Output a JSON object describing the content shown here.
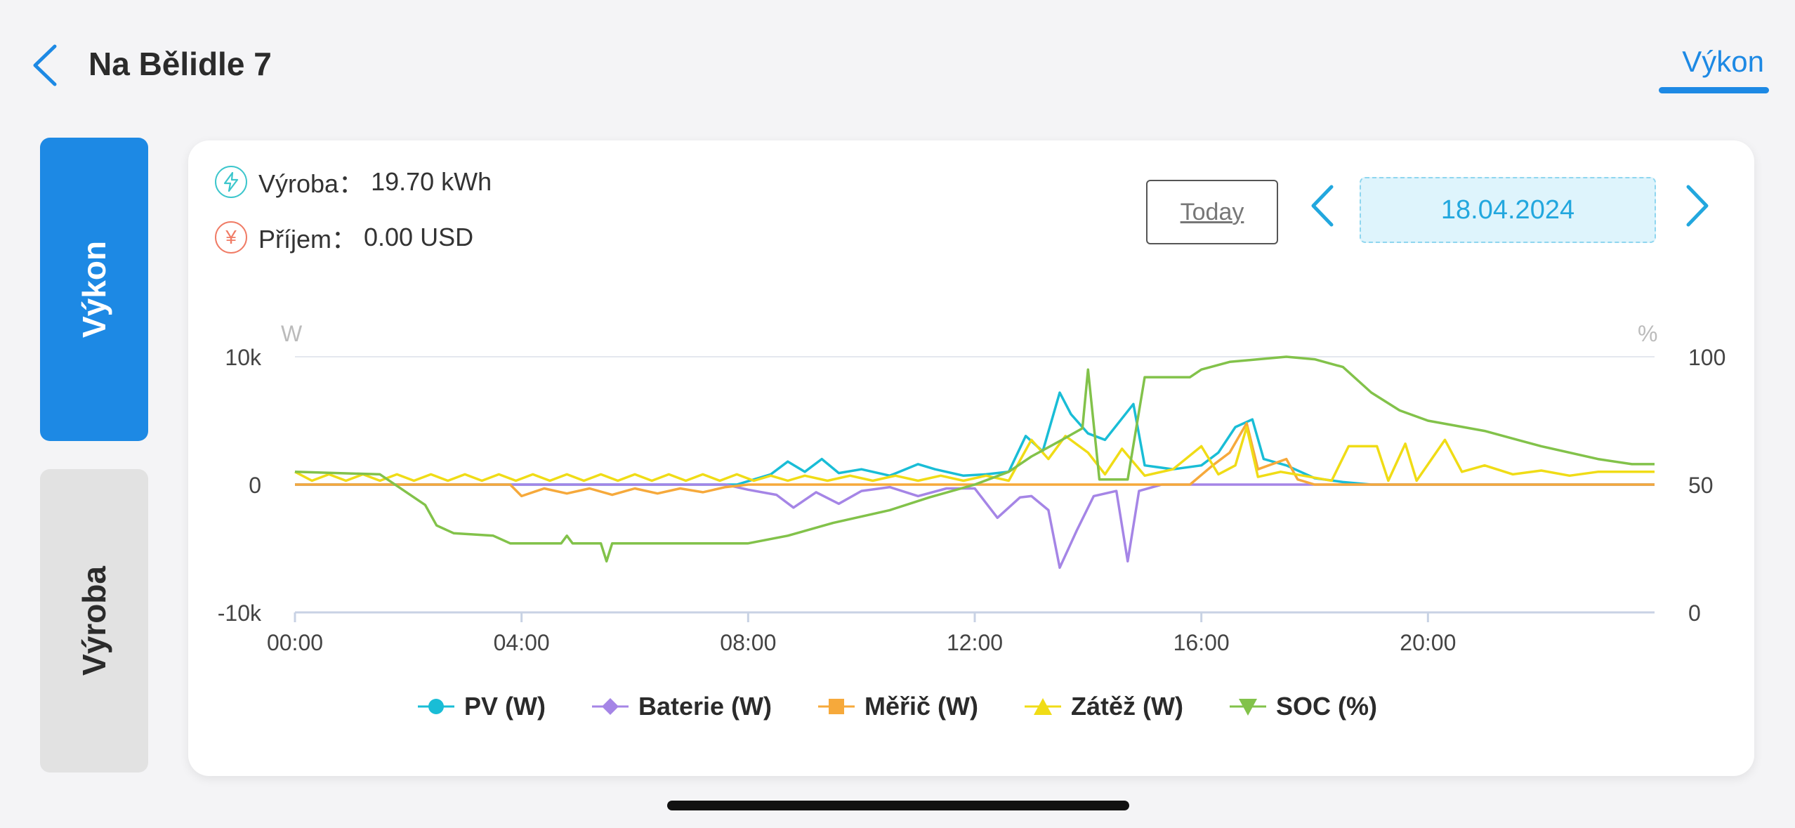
{
  "header": {
    "title": "Na Bělidle 7",
    "tab_label": "Výkon"
  },
  "side_tabs": {
    "active": "Výkon",
    "inactive": "Výroba"
  },
  "stats": {
    "production_label": "Výroba：",
    "production_value": "19.70 kWh",
    "income_label": "Příjem：",
    "income_value": "0.00 USD"
  },
  "controls": {
    "today_label": "Today",
    "date": "18.04.2024"
  },
  "colors": {
    "accent": "#1d89e4",
    "pv": "#19bdd6",
    "battery": "#a585e6",
    "meter": "#f6a93b",
    "load": "#f0dc16",
    "soc": "#82c24a"
  },
  "chart_data": {
    "type": "line",
    "y_left_unit": "W",
    "y_right_unit": "%",
    "y_left_ticks": [
      "10k",
      "0",
      "-10k"
    ],
    "y_right_ticks": [
      "100",
      "50",
      "0"
    ],
    "ylim_left": [
      -10000,
      10000
    ],
    "ylim_right": [
      0,
      100
    ],
    "x_ticks": [
      "00:00",
      "04:00",
      "08:00",
      "12:00",
      "16:00",
      "20:00"
    ],
    "xlim_hours": [
      0,
      24
    ],
    "grid": "horizontal",
    "legend_placement": "bottom",
    "series": [
      {
        "name": "PV (W)",
        "axis": "left",
        "marker": "circle",
        "points": [
          [
            0,
            0
          ],
          [
            7.8,
            0
          ],
          [
            8.4,
            800
          ],
          [
            8.7,
            1800
          ],
          [
            9,
            1000
          ],
          [
            9.3,
            2000
          ],
          [
            9.6,
            900
          ],
          [
            10,
            1200
          ],
          [
            10.5,
            700
          ],
          [
            11,
            1600
          ],
          [
            11.3,
            1200
          ],
          [
            11.8,
            700
          ],
          [
            12.2,
            800
          ],
          [
            12.6,
            1000
          ],
          [
            12.9,
            3800
          ],
          [
            13.2,
            2600
          ],
          [
            13.5,
            7200
          ],
          [
            13.7,
            5500
          ],
          [
            14,
            4000
          ],
          [
            14.3,
            3500
          ],
          [
            14.8,
            6300
          ],
          [
            15,
            1500
          ],
          [
            15.5,
            1200
          ],
          [
            16,
            1500
          ],
          [
            16.3,
            2500
          ],
          [
            16.6,
            4500
          ],
          [
            16.9,
            5100
          ],
          [
            17.1,
            2000
          ],
          [
            17.5,
            1500
          ],
          [
            18,
            500
          ],
          [
            18.5,
            200
          ],
          [
            19,
            0
          ],
          [
            24,
            0
          ]
        ]
      },
      {
        "name": "Baterie (W)",
        "axis": "left",
        "marker": "diamond",
        "points": [
          [
            0,
            0
          ],
          [
            7.6,
            0
          ],
          [
            8,
            -400
          ],
          [
            8.5,
            -800
          ],
          [
            8.8,
            -1800
          ],
          [
            9.2,
            -600
          ],
          [
            9.6,
            -1500
          ],
          [
            10,
            -500
          ],
          [
            10.5,
            -200
          ],
          [
            11,
            -900
          ],
          [
            11.5,
            -300
          ],
          [
            12,
            -300
          ],
          [
            12.4,
            -2600
          ],
          [
            12.8,
            -1000
          ],
          [
            13,
            -900
          ],
          [
            13.3,
            -2000
          ],
          [
            13.5,
            -6500
          ],
          [
            13.8,
            -3600
          ],
          [
            14.1,
            -900
          ],
          [
            14.5,
            -500
          ],
          [
            14.7,
            -6000
          ],
          [
            14.9,
            -500
          ],
          [
            15.3,
            0
          ],
          [
            24,
            0
          ]
        ]
      },
      {
        "name": "Měřič (W)",
        "axis": "left",
        "marker": "square",
        "points": [
          [
            0,
            0
          ],
          [
            3.8,
            0
          ],
          [
            4,
            -900
          ],
          [
            4.4,
            -300
          ],
          [
            4.8,
            -700
          ],
          [
            5.2,
            -300
          ],
          [
            5.6,
            -800
          ],
          [
            6,
            -300
          ],
          [
            6.4,
            -700
          ],
          [
            6.8,
            -300
          ],
          [
            7.2,
            -600
          ],
          [
            7.6,
            -200
          ],
          [
            8,
            0
          ],
          [
            15.8,
            0
          ],
          [
            16.2,
            1500
          ],
          [
            16.5,
            2500
          ],
          [
            16.8,
            4800
          ],
          [
            17,
            1200
          ],
          [
            17.5,
            2000
          ],
          [
            17.7,
            400
          ],
          [
            18,
            0
          ],
          [
            24,
            0
          ]
        ]
      },
      {
        "name": "Zátěž (W)",
        "axis": "left",
        "marker": "triangle-up",
        "points": [
          [
            0,
            1000
          ],
          [
            0.3,
            300
          ],
          [
            0.6,
            800
          ],
          [
            0.9,
            300
          ],
          [
            1.2,
            800
          ],
          [
            1.5,
            300
          ],
          [
            1.8,
            800
          ],
          [
            2.1,
            300
          ],
          [
            2.4,
            800
          ],
          [
            2.7,
            300
          ],
          [
            3,
            800
          ],
          [
            3.3,
            300
          ],
          [
            3.6,
            800
          ],
          [
            3.9,
            300
          ],
          [
            4.2,
            800
          ],
          [
            4.5,
            300
          ],
          [
            4.8,
            800
          ],
          [
            5.1,
            300
          ],
          [
            5.4,
            800
          ],
          [
            5.7,
            300
          ],
          [
            6,
            800
          ],
          [
            6.3,
            300
          ],
          [
            6.6,
            800
          ],
          [
            6.9,
            300
          ],
          [
            7.2,
            800
          ],
          [
            7.5,
            300
          ],
          [
            7.8,
            800
          ],
          [
            8.1,
            300
          ],
          [
            8.4,
            700
          ],
          [
            8.7,
            300
          ],
          [
            9,
            700
          ],
          [
            9.4,
            300
          ],
          [
            9.8,
            700
          ],
          [
            10.2,
            300
          ],
          [
            10.6,
            700
          ],
          [
            11,
            300
          ],
          [
            11.4,
            700
          ],
          [
            11.8,
            300
          ],
          [
            12.2,
            700
          ],
          [
            12.6,
            300
          ],
          [
            13,
            3500
          ],
          [
            13.3,
            2000
          ],
          [
            13.6,
            3800
          ],
          [
            14,
            2500
          ],
          [
            14.3,
            800
          ],
          [
            14.6,
            2800
          ],
          [
            15,
            700
          ],
          [
            15.5,
            1200
          ],
          [
            16,
            3000
          ],
          [
            16.3,
            800
          ],
          [
            16.6,
            1500
          ],
          [
            16.8,
            4500
          ],
          [
            17,
            600
          ],
          [
            17.4,
            1000
          ],
          [
            17.8,
            700
          ],
          [
            18.3,
            300
          ],
          [
            18.6,
            3000
          ],
          [
            19.1,
            3000
          ],
          [
            19.3,
            300
          ],
          [
            19.6,
            3200
          ],
          [
            19.8,
            300
          ],
          [
            20.3,
            3500
          ],
          [
            20.6,
            1000
          ],
          [
            21,
            1500
          ],
          [
            21.5,
            800
          ],
          [
            22,
            1100
          ],
          [
            22.5,
            700
          ],
          [
            23,
            1000
          ],
          [
            23.5,
            1000
          ],
          [
            24,
            1000
          ]
        ]
      },
      {
        "name": "SOC (%)",
        "axis": "right",
        "marker": "triangle-down",
        "points": [
          [
            0,
            55
          ],
          [
            1.5,
            54
          ],
          [
            2.3,
            42
          ],
          [
            2.5,
            34
          ],
          [
            2.8,
            31
          ],
          [
            3.5,
            30
          ],
          [
            3.8,
            27
          ],
          [
            4.7,
            27
          ],
          [
            4.8,
            30
          ],
          [
            4.9,
            27
          ],
          [
            5.4,
            27
          ],
          [
            5.5,
            20
          ],
          [
            5.6,
            27
          ],
          [
            8,
            27
          ],
          [
            8.7,
            30
          ],
          [
            9.5,
            35
          ],
          [
            10.5,
            40
          ],
          [
            11.2,
            45
          ],
          [
            12,
            50
          ],
          [
            12.6,
            55
          ],
          [
            13,
            61
          ],
          [
            13.5,
            67
          ],
          [
            13.9,
            72
          ],
          [
            14,
            95
          ],
          [
            14.2,
            52
          ],
          [
            14.7,
            52
          ],
          [
            15,
            92
          ],
          [
            15.8,
            92
          ],
          [
            16,
            95
          ],
          [
            16.5,
            98
          ],
          [
            17,
            99
          ],
          [
            17.5,
            100
          ],
          [
            18,
            99
          ],
          [
            18.5,
            96
          ],
          [
            19,
            86
          ],
          [
            19.5,
            79
          ],
          [
            20,
            75
          ],
          [
            21,
            71
          ],
          [
            22,
            65
          ],
          [
            23,
            60
          ],
          [
            23.6,
            58
          ],
          [
            24,
            58
          ]
        ]
      }
    ]
  }
}
